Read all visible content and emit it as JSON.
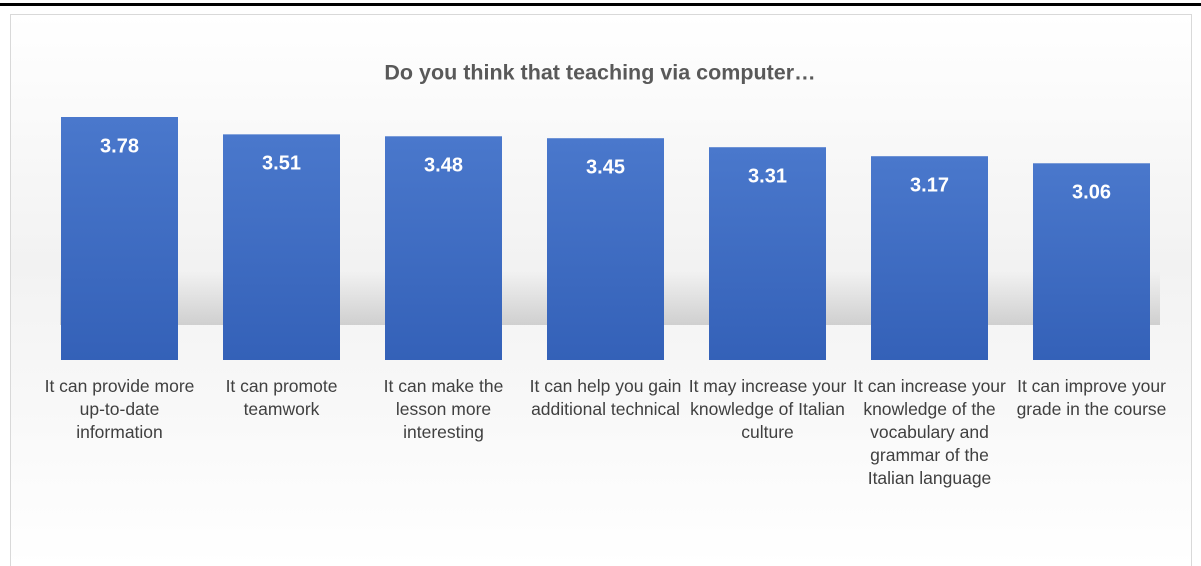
{
  "chart_data": {
    "type": "bar",
    "title": "Do you think that teaching via computer…",
    "categories": [
      "It can provide more up-to-date information",
      "It can promote teamwork",
      "It can make the lesson more interesting",
      "It can help you gain additional technical",
      "It may increase your knowledge of Italian culture",
      "It can increase your knowledge of the vocabulary and grammar of the Italian language",
      "It can improve your grade in the course"
    ],
    "values": [
      3.78,
      3.51,
      3.48,
      3.45,
      3.31,
      3.17,
      3.06
    ],
    "color": "#4472c4",
    "grid": false
  }
}
